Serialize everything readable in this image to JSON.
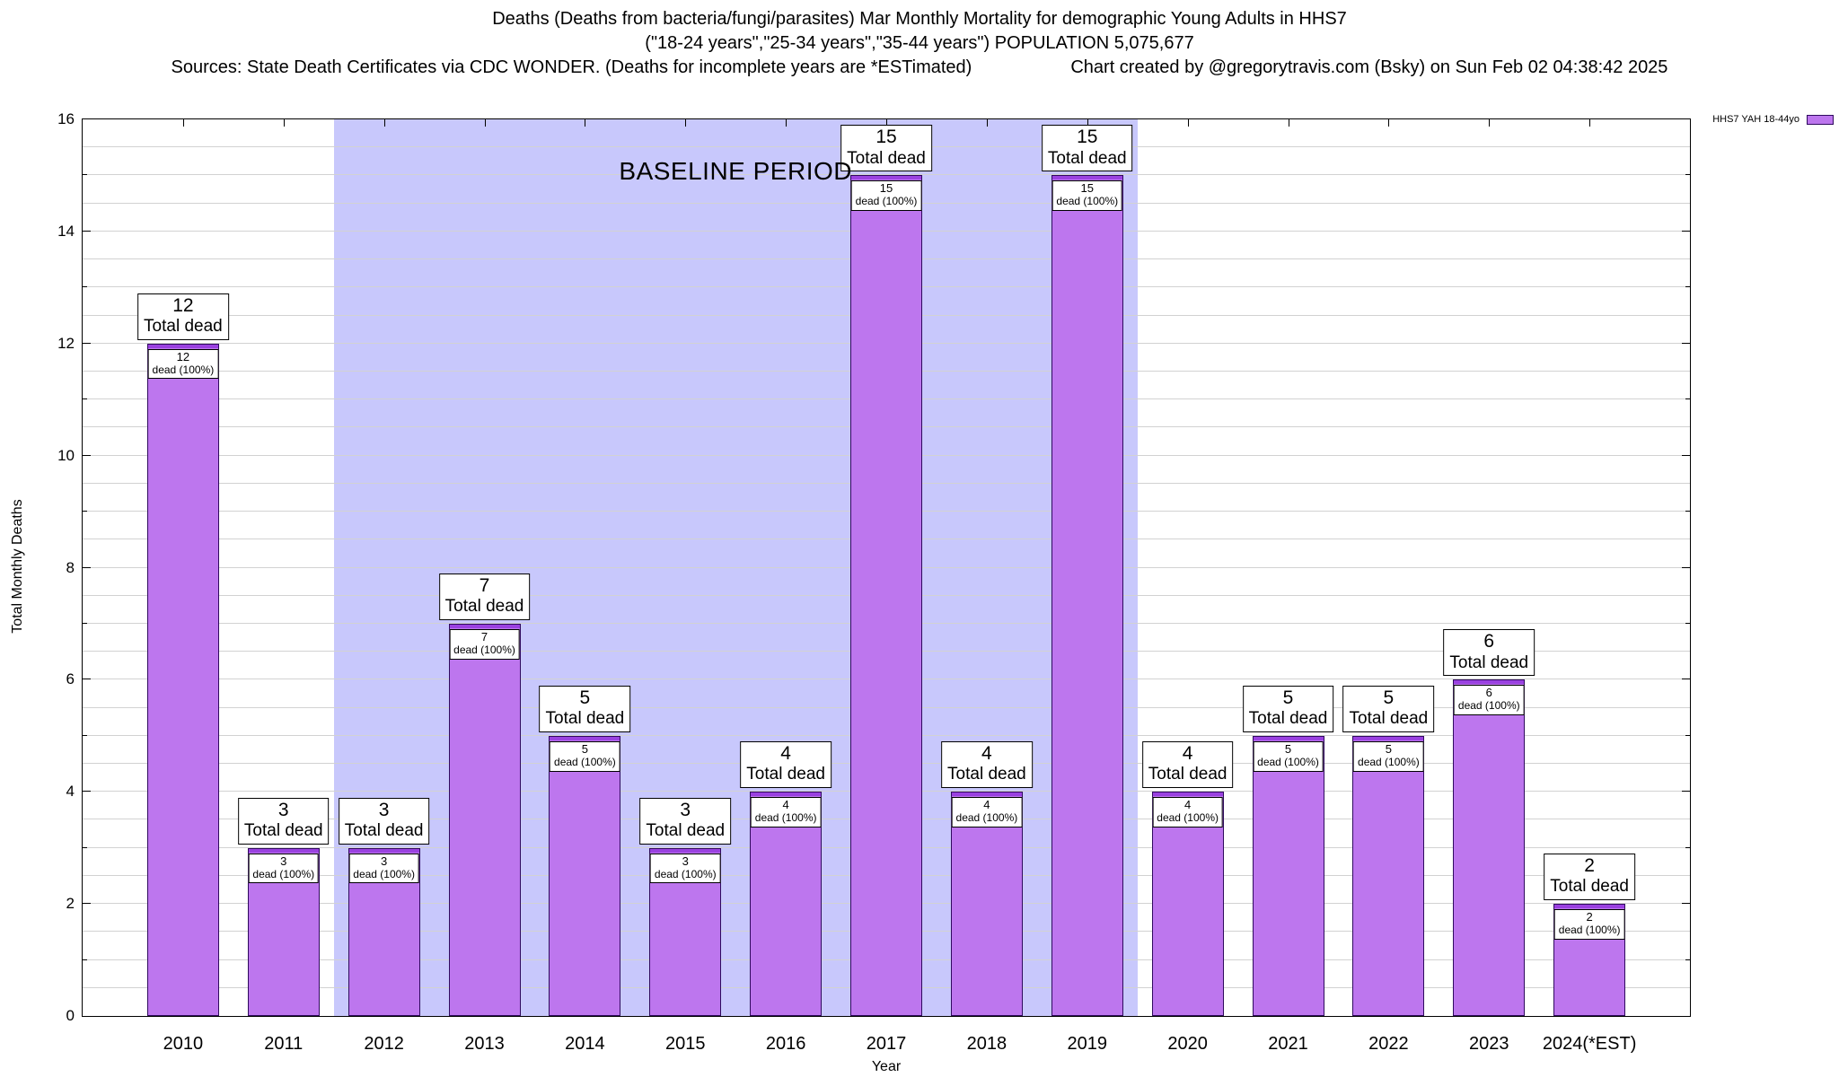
{
  "header": {
    "title_line1": "Deaths (Deaths from bacteria/fungi/parasites) Mar Monthly Mortality for demographic Young Adults in HHS7",
    "title_line2": "(\"18-24 years\",\"25-34 years\",\"35-44 years\") POPULATION 5,075,677",
    "sources": "Sources: State Death Certificates via CDC WONDER. (Deaths for incomplete years are *ESTimated)",
    "credit": "Chart created by @gregorytravis.com (Bsky) on Sun Feb 02 04:38:42 2025"
  },
  "chart_data": {
    "type": "bar",
    "title": "Deaths (Deaths from bacteria/fungi/parasites) Mar Monthly Mortality for demographic Young Adults in HHS7",
    "xlabel": "Year",
    "ylabel": "Total Monthly Deaths",
    "ylim": [
      0,
      16
    ],
    "ytick_step": 2,
    "grid_minor_step": 0.5,
    "grid": "horizontal minor gridlines every 0.5",
    "legend_position": "top-right",
    "categories": [
      "2010",
      "2011",
      "2012",
      "2013",
      "2014",
      "2015",
      "2016",
      "2017",
      "2018",
      "2019",
      "2020",
      "2021",
      "2022",
      "2023",
      "2024(*EST)"
    ],
    "series": [
      {
        "name": "HHS7 YAH 18-44yo",
        "values": [
          12,
          3,
          3,
          7,
          5,
          3,
          4,
          15,
          4,
          15,
          4,
          5,
          5,
          6,
          2
        ]
      }
    ],
    "bar_labels": {
      "above_text": "Total dead",
      "inside_text": "dead (100%)"
    },
    "baseline_band": {
      "from_category": "2012",
      "to_category": "2019",
      "label": "BASELINE PERIOD"
    }
  },
  "colors": {
    "bar_fill": "#bd76ee",
    "bar_cap": "#9a41e0",
    "bar_border": "#2f0a5e",
    "band": "#c8c8fc",
    "grid": "#d2d2d2",
    "axis": "#000000"
  }
}
